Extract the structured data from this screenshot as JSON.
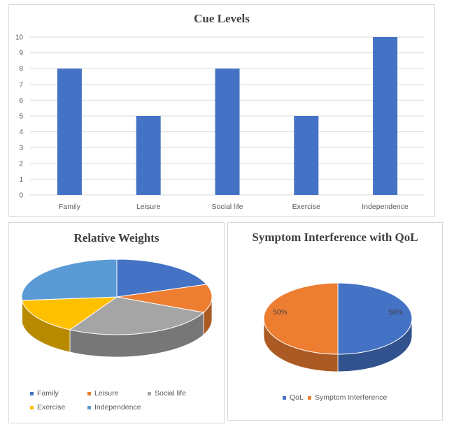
{
  "chart_data": [
    {
      "type": "bar",
      "title": "Cue Levels",
      "categories": [
        "Family",
        "Leisure",
        "Social life",
        "Exercise",
        "Independence"
      ],
      "values": [
        8,
        5,
        8,
        5,
        10
      ],
      "ylim": [
        0,
        10
      ],
      "yticks": [
        "0",
        "1",
        "2",
        "3",
        "4",
        "5",
        "6",
        "7",
        "8",
        "9",
        "10"
      ],
      "grid": true,
      "color": "#4472C4"
    },
    {
      "type": "pie",
      "title": "Relative Weights",
      "labels": [
        "Family",
        "Leisure",
        "Social life",
        "Exercise",
        "Independence"
      ],
      "values": [
        18.5,
        11.5,
        25,
        14.5,
        25
      ],
      "colors": [
        "#4472C4",
        "#ED7D31",
        "#A5A5A5",
        "#FFC000",
        "#5B9BD5"
      ],
      "legend_position": "bottom"
    },
    {
      "type": "pie",
      "title": "Symptom Interference with QoL",
      "labels": [
        "QoL",
        "Symptom Interference"
      ],
      "values": [
        50,
        50
      ],
      "data_labels": [
        "50%",
        "50%"
      ],
      "colors": [
        "#4472C4",
        "#ED7D31"
      ],
      "legend_position": "bottom"
    }
  ]
}
